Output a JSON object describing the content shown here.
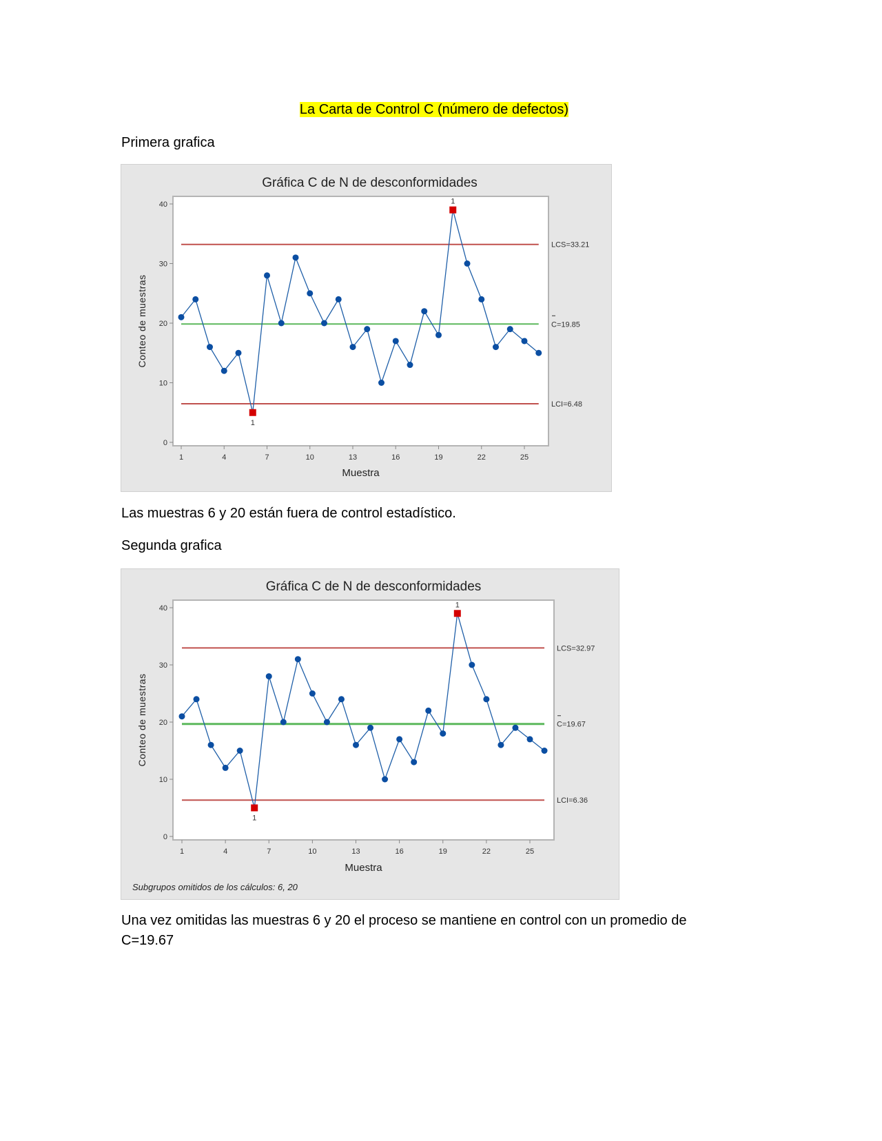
{
  "document": {
    "title": "La Carta de Control C (número de defectos)",
    "section1_heading": "Primera grafica",
    "section1_conclusion": "Las muestras 6 y 20 están fuera de control estadístico.",
    "section2_heading": "Segunda grafica",
    "section2_conclusion_line1": "Una vez omitidas las muestras 6 y 20 el proceso se mantiene en control con un promedio de",
    "section2_conclusion_line2": "C=19.67"
  },
  "colors": {
    "series": "#1f5fa8",
    "marker": "#0b4ea2",
    "out_of_control": "#d40000",
    "limits": "#c0504d",
    "center": "#5cb85c",
    "plot_bg": "#ffffff",
    "panel_bg": "#e6e6e6"
  },
  "chart_data": [
    {
      "type": "line",
      "title": "Gráfica C de N de desconformidades",
      "xlabel": "Muestra",
      "ylabel": "Conteo de muestras",
      "x": [
        1,
        2,
        3,
        4,
        5,
        6,
        7,
        8,
        9,
        10,
        11,
        12,
        13,
        14,
        15,
        16,
        17,
        18,
        19,
        20,
        21,
        22,
        23,
        24,
        25,
        26
      ],
      "values": [
        21,
        24,
        16,
        12,
        15,
        5,
        28,
        20,
        31,
        25,
        20,
        24,
        16,
        19,
        10,
        17,
        13,
        22,
        18,
        39,
        30,
        24,
        16,
        19,
        17,
        15
      ],
      "xticks": [
        1,
        4,
        7,
        10,
        13,
        16,
        19,
        22,
        25
      ],
      "yticks": [
        0,
        10,
        20,
        30,
        40
      ],
      "ylim": [
        0,
        40
      ],
      "ucl": 33.21,
      "center": 19.85,
      "lcl": 6.48,
      "ucl_label": "LCS=33.21",
      "center_label": "C=19.85",
      "lcl_label": "LCI=6.48",
      "out_of_control": [
        6,
        20
      ],
      "flag_label": "1",
      "footnote": ""
    },
    {
      "type": "line",
      "title": "Gráfica C de N de desconformidades",
      "xlabel": "Muestra",
      "ylabel": "Conteo de muestras",
      "x": [
        1,
        2,
        3,
        4,
        5,
        6,
        7,
        8,
        9,
        10,
        11,
        12,
        13,
        14,
        15,
        16,
        17,
        18,
        19,
        20,
        21,
        22,
        23,
        24,
        25,
        26
      ],
      "values": [
        21,
        24,
        16,
        12,
        15,
        5,
        28,
        20,
        31,
        25,
        20,
        24,
        16,
        19,
        10,
        17,
        13,
        22,
        18,
        39,
        30,
        24,
        16,
        19,
        17,
        15
      ],
      "xticks": [
        1,
        4,
        7,
        10,
        13,
        16,
        19,
        22,
        25
      ],
      "yticks": [
        0,
        10,
        20,
        30,
        40
      ],
      "ylim": [
        0,
        40
      ],
      "ucl": 32.97,
      "center": 19.67,
      "lcl": 6.36,
      "ucl_label": "LCS=32.97",
      "center_label": "C=19.67",
      "lcl_label": "LCI=6.36",
      "out_of_control": [
        6,
        20
      ],
      "flag_label": "1",
      "footnote": "Subgrupos omitidos de los cálculos: 6, 20"
    }
  ]
}
